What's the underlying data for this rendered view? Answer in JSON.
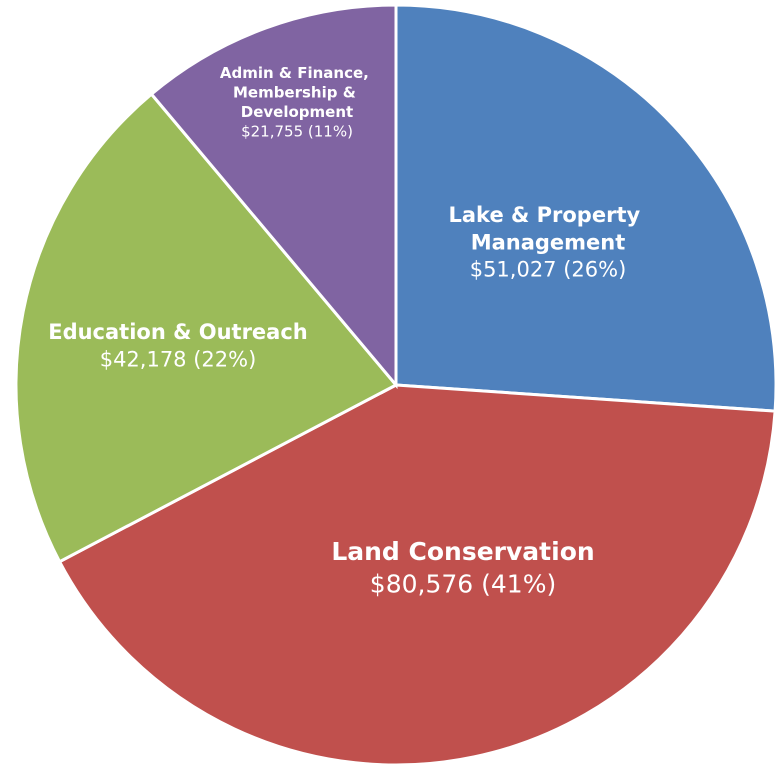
{
  "chart_data": {
    "type": "pie",
    "categories": [
      "Lake & Property Management",
      "Land Conservation",
      "Education & Outreach",
      "Admin & Finance, Membership & Development"
    ],
    "values": [
      51027,
      80576,
      42178,
      21755
    ],
    "value_labels": [
      "$51,027 (26%)",
      "$80,576 (41%)",
      "$42,178 (22%)",
      "$21,755 (11%)"
    ],
    "colors": [
      "#4f81bd",
      "#c0504d",
      "#9bbb59",
      "#8064a2"
    ]
  }
}
